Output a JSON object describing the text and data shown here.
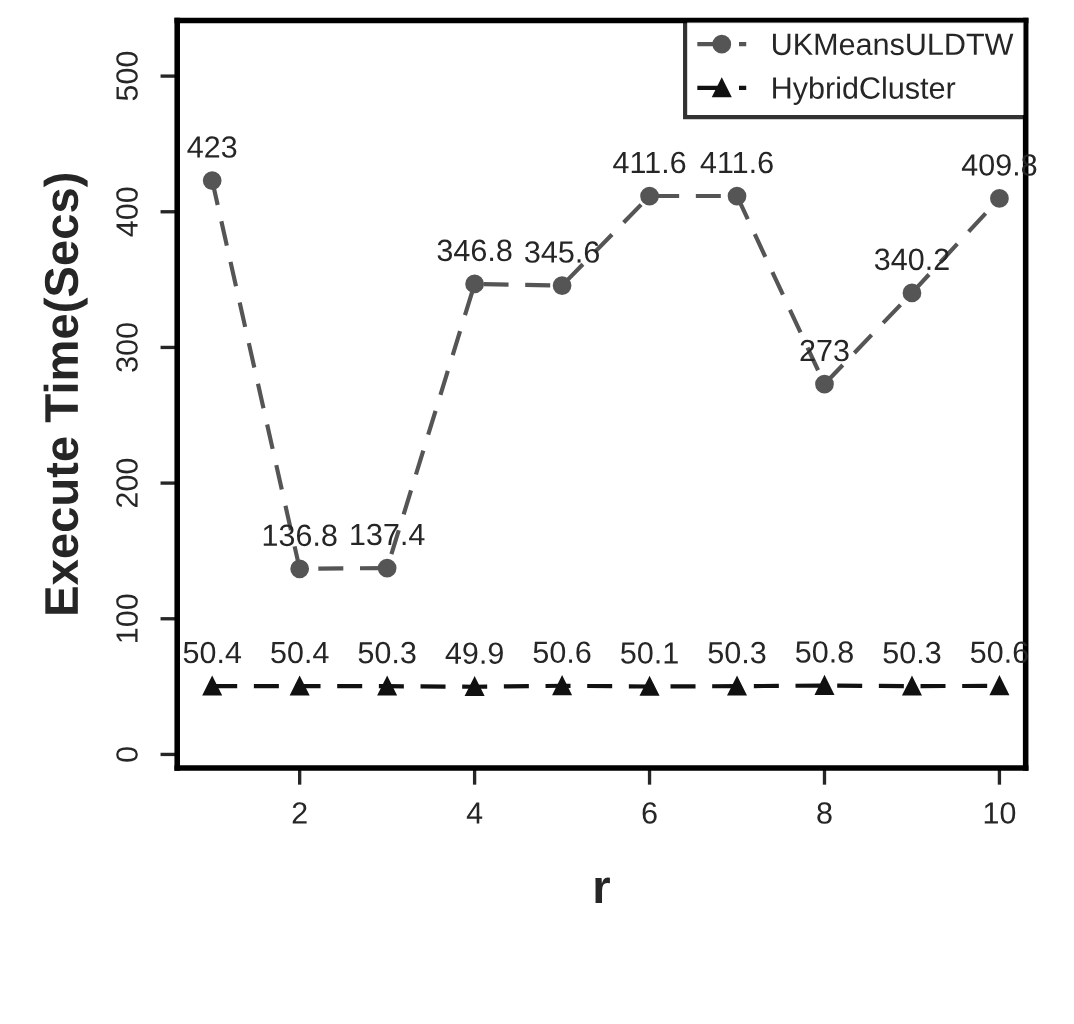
{
  "chart_data": {
    "type": "line",
    "xlabel": "r",
    "ylabel": "Execute Time(Secs)",
    "x": [
      1,
      2,
      3,
      4,
      5,
      6,
      7,
      8,
      9,
      10
    ],
    "series": [
      {
        "name": "UKMeansULDTW",
        "color": "#555555",
        "marker": "circle",
        "values": [
          423,
          136.8,
          137.4,
          346.8,
          345.6,
          411.6,
          411.6,
          273,
          340.2,
          409.8
        ]
      },
      {
        "name": "HybridCluster",
        "color": "#111111",
        "marker": "triangle",
        "values": [
          50.4,
          50.4,
          50.3,
          49.9,
          50.6,
          50.1,
          50.3,
          50.8,
          50.3,
          50.6
        ]
      }
    ],
    "line_style": "dashed",
    "data_labels": true,
    "legend": "top right",
    "grid": false,
    "xlim": [
      0.6,
      10.3
    ],
    "xticks": [
      2,
      4,
      6,
      8,
      10
    ],
    "ylim": [
      -10,
      541
    ],
    "yticks": [
      0,
      100,
      200,
      300,
      400,
      500
    ]
  }
}
